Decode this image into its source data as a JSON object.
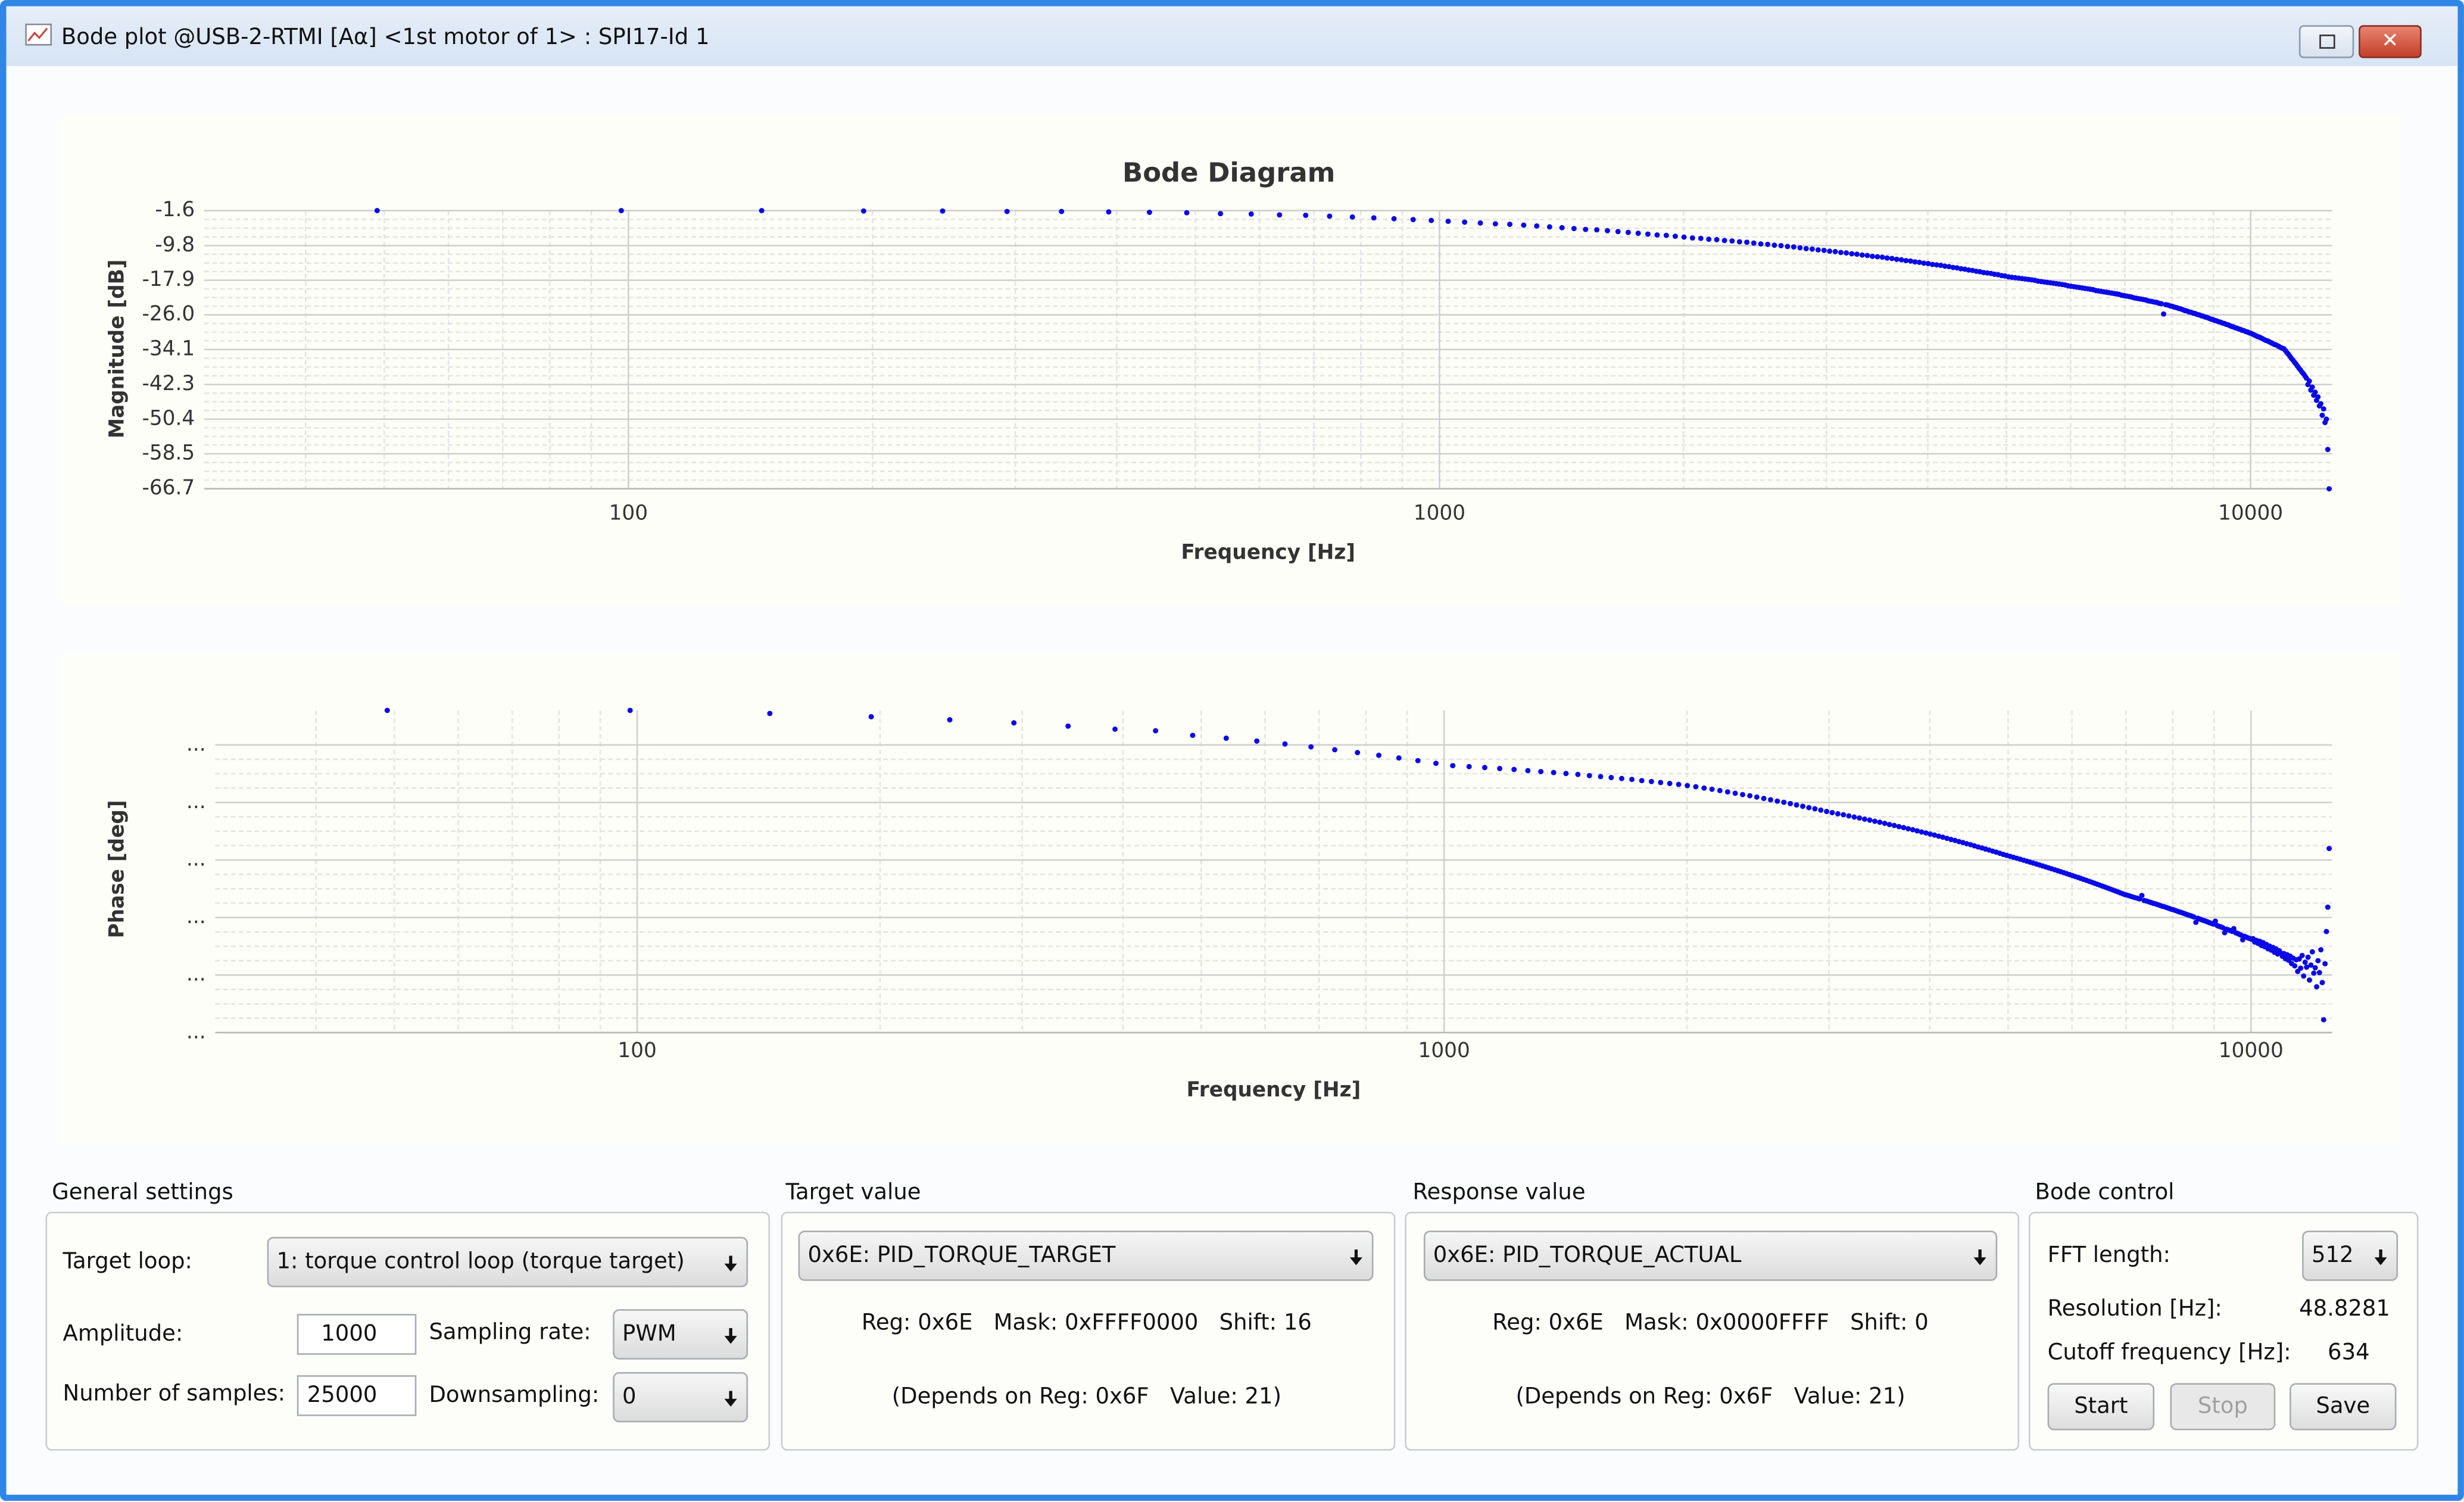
{
  "window": {
    "title": "Bode plot @USB-2-RTMI [Aα] <1st motor of 1> : SPI17-Id 1"
  },
  "chart_data": [
    {
      "type": "scatter",
      "title": "Bode Diagram",
      "x_label": "Frequency [Hz]",
      "y_label": "Magnitude [dB]",
      "color": "#0a0ae6",
      "log_x": true,
      "grid": true,
      "xlim": [
        30,
        12600
      ],
      "xticks": [
        100,
        1000,
        10000
      ],
      "ylim": [
        -66.7,
        -1.6
      ],
      "yticks": [
        -1.6,
        -9.8,
        -17.9,
        {
          "value": -26,
          "label": "-26.0"
        },
        -34.1,
        -42.3,
        -50.4,
        -58.5,
        -66.7
      ],
      "x": [
        49,
        98,
        146,
        195,
        244,
        293,
        342,
        391,
        439,
        488,
        537,
        586,
        635,
        684,
        732,
        781,
        830,
        879,
        928,
        977,
        1025,
        1074,
        1123,
        1172,
        1221,
        1270,
        1318,
        1367,
        1416,
        1465,
        1514,
        1563,
        1611,
        1660,
        1709,
        1758,
        1807,
        1855,
        1904,
        1953,
        2002,
        2051,
        2100,
        2148,
        2197,
        2246,
        2295,
        2344,
        2393,
        2441,
        2490,
        2539,
        2588,
        2637,
        2686,
        2734,
        2783,
        2832,
        2881,
        2930,
        2979,
        3027,
        3076,
        3125,
        3174,
        3223,
        3271,
        3320,
        3369,
        3418,
        3467,
        3516,
        3564,
        3613,
        3662,
        3711,
        3760,
        3809,
        3857,
        3906,
        3955,
        4004,
        4053,
        4102,
        4150,
        4199,
        4248,
        4297,
        4346,
        4395,
        4443,
        4492,
        4541,
        4590,
        4639,
        4688,
        4736,
        4785,
        4834,
        4883,
        4932,
        4980,
        5029,
        5078,
        5127,
        5176,
        5225,
        5273,
        5322,
        5371,
        5420,
        5469,
        5518,
        5566,
        5615,
        5664,
        5713,
        5762,
        5811,
        5859,
        5908,
        5957,
        6006,
        6055,
        6104,
        6152,
        6201,
        6250,
        6299,
        6348,
        6396,
        6445,
        6494,
        6543,
        6592,
        6641,
        6689,
        6738,
        6787,
        6836,
        6885,
        6934,
        6982,
        7031,
        7080,
        7129,
        7178,
        7227,
        7275,
        7324,
        7373,
        7422,
        7471,
        7520,
        7568,
        7617,
        7666,
        7715,
        7764,
        7813,
        7861,
        7910,
        7959,
        8008,
        8057,
        8105,
        8154,
        8203,
        8252,
        8301,
        8350,
        8398,
        8447,
        8496,
        8545,
        8594,
        8643,
        8691,
        8740,
        8789,
        8838,
        8887,
        8936,
        8984,
        9033,
        9082,
        9131,
        9180,
        9229,
        9277,
        9326,
        9375,
        9424,
        9473,
        9521,
        9570,
        9619,
        9668,
        9717,
        9766,
        9814,
        9863,
        9912,
        9961,
        10010,
        10059,
        10107,
        10156,
        10205,
        10254,
        10303,
        10352,
        10400,
        10449,
        10498,
        10547,
        10596,
        10645,
        10693,
        10742,
        10791,
        10840,
        10889,
        10938,
        10986,
        11035,
        11084,
        11133,
        11182,
        11230,
        11279,
        11328,
        11377,
        11426,
        11475,
        11523,
        11572,
        11621,
        11670,
        11719,
        11768,
        11816,
        11865,
        11914,
        11963,
        12012,
        12061,
        12109,
        12158,
        12207,
        12256,
        12305,
        12354,
        12402,
        12451,
        12500
      ],
      "values": [
        -1.6,
        -1.6,
        -1.6,
        -1.7,
        -1.7,
        -1.8,
        -1.8,
        -1.9,
        -2.0,
        -2.1,
        -2.3,
        -2.4,
        -2.6,
        -2.7,
        -2.9,
        -3.1,
        -3.3,
        -3.5,
        -3.7,
        -3.9,
        -4.1,
        -4.3,
        -4.5,
        -4.7,
        -4.8,
        -5.0,
        -5.2,
        -5.4,
        -5.6,
        -5.8,
        -6.0,
        -6.1,
        -6.3,
        -6.5,
        -6.7,
        -6.9,
        -7.1,
        -7.3,
        -7.4,
        -7.6,
        -7.8,
        -8.0,
        -8.1,
        -8.3,
        -8.4,
        -8.6,
        -8.7,
        -8.9,
        -9.0,
        -9.2,
        -9.4,
        -9.5,
        -9.7,
        -9.8,
        -10.0,
        -10.1,
        -10.3,
        -10.5,
        -10.6,
        -10.8,
        -10.9,
        -11.1,
        -11.2,
        -11.4,
        -11.5,
        -11.7,
        -11.8,
        -12.0,
        -12.1,
        -12.3,
        -12.4,
        -12.5,
        -12.7,
        -12.8,
        -13.0,
        -13.1,
        -13.3,
        -13.4,
        -13.6,
        -13.7,
        -13.9,
        -14.0,
        -14.2,
        -14.3,
        -14.4,
        -14.6,
        -14.7,
        -14.9,
        -15.0,
        -15.2,
        -15.3,
        -15.5,
        -15.6,
        -15.8,
        -15.9,
        -16.1,
        -16.2,
        -16.3,
        -16.5,
        -16.6,
        -16.8,
        -16.9,
        -17.1,
        -17.2,
        -17.3,
        -17.4,
        -17.5,
        -17.6,
        -17.7,
        -17.8,
        -17.9,
        -18.1,
        -18.2,
        -18.3,
        -18.4,
        -18.5,
        -18.6,
        -18.7,
        -18.8,
        -18.9,
        -19.0,
        -19.2,
        -19.3,
        -19.4,
        -19.5,
        -19.6,
        -19.7,
        -19.8,
        -19.9,
        -20.0,
        -20.1,
        -20.3,
        -20.4,
        -20.5,
        -20.6,
        -20.7,
        -20.8,
        -20.9,
        -21.0,
        -21.1,
        -21.2,
        -21.4,
        -21.5,
        -21.6,
        -21.7,
        -21.8,
        -22.0,
        -22.1,
        -22.2,
        -22.3,
        -22.4,
        -22.5,
        -22.7,
        -22.8,
        -22.9,
        -23.0,
        -23.1,
        -23.3,
        -23.4,
        -25.8,
        -23.6,
        -23.7,
        -23.9,
        -24.0,
        -24.2,
        -24.3,
        -24.5,
        -24.6,
        -24.8,
        -25.0,
        -25.1,
        -25.3,
        -25.4,
        -25.6,
        -25.7,
        -25.9,
        -26.0,
        -26.2,
        -26.3,
        -26.5,
        -26.6,
        -26.8,
        -27.0,
        -27.1,
        -27.3,
        -27.4,
        -27.6,
        -27.7,
        -27.9,
        -28.0,
        -28.2,
        -28.3,
        -28.5,
        -28.7,
        -28.8,
        -29.0,
        -29.1,
        -29.3,
        -29.4,
        -29.6,
        -29.7,
        -29.9,
        -30.0,
        -30.2,
        -30.3,
        -30.5,
        -30.7,
        -30.9,
        -31.1,
        -31.2,
        -31.4,
        -31.6,
        -31.8,
        -32.0,
        -32.1,
        -32.3,
        -32.5,
        -32.7,
        -32.9,
        -33.0,
        -33.2,
        -33.4,
        -33.6,
        -33.8,
        -33.9,
        -34.3,
        -34.8,
        -35.2,
        -35.7,
        -36.2,
        -36.6,
        -37.1,
        -37.5,
        -38.0,
        -38.5,
        -38.9,
        -39.4,
        -39.8,
        -40.3,
        -40.8,
        -42.3,
        -41.5,
        -43.6,
        -42.9,
        -44.8,
        -44.1,
        -46.0,
        -45.2,
        -47.3,
        -46.8,
        -49.5,
        -48.0,
        -51.2,
        -50.4,
        -57.5,
        -66.7
      ]
    },
    {
      "type": "scatter",
      "x_label": "Frequency [Hz]",
      "y_label": "Phase [deg]",
      "color": "#0a0ae6",
      "log_x": true,
      "grid": true,
      "xlim": [
        30,
        12600
      ],
      "xticks": [
        100,
        1000,
        10000
      ],
      "ylim": [
        -170,
        -2
      ],
      "yticks": [
        {
          "value": -20,
          "label": "..."
        },
        {
          "value": -50,
          "label": "..."
        },
        {
          "value": -80,
          "label": "..."
        },
        {
          "value": -110,
          "label": "..."
        },
        {
          "value": -140,
          "label": "..."
        },
        {
          "value": -170,
          "label": "..."
        }
      ],
      "x": [
        49,
        98,
        146,
        195,
        244,
        293,
        342,
        391,
        439,
        488,
        537,
        586,
        635,
        684,
        732,
        781,
        830,
        879,
        928,
        977,
        1025,
        1074,
        1123,
        1172,
        1221,
        1270,
        1318,
        1367,
        1416,
        1465,
        1514,
        1563,
        1611,
        1660,
        1709,
        1758,
        1807,
        1855,
        1904,
        1953,
        2002,
        2051,
        2100,
        2148,
        2197,
        2246,
        2295,
        2344,
        2393,
        2441,
        2490,
        2539,
        2588,
        2637,
        2686,
        2734,
        2783,
        2832,
        2881,
        2930,
        2979,
        3027,
        3076,
        3125,
        3174,
        3223,
        3271,
        3320,
        3369,
        3418,
        3467,
        3516,
        3564,
        3613,
        3662,
        3711,
        3760,
        3809,
        3857,
        3906,
        3955,
        4004,
        4053,
        4102,
        4150,
        4199,
        4248,
        4297,
        4346,
        4395,
        4443,
        4492,
        4541,
        4590,
        4639,
        4688,
        4736,
        4785,
        4834,
        4883,
        4932,
        4980,
        5029,
        5078,
        5127,
        5176,
        5225,
        5273,
        5322,
        5371,
        5420,
        5469,
        5518,
        5566,
        5615,
        5664,
        5713,
        5762,
        5811,
        5859,
        5908,
        5957,
        6006,
        6055,
        6104,
        6152,
        6201,
        6250,
        6299,
        6348,
        6396,
        6445,
        6494,
        6543,
        6592,
        6641,
        6689,
        6738,
        6787,
        6836,
        6885,
        6934,
        6982,
        7031,
        7080,
        7129,
        7178,
        7227,
        7275,
        7324,
        7373,
        7422,
        7471,
        7520,
        7568,
        7617,
        7666,
        7715,
        7764,
        7813,
        7861,
        7910,
        7959,
        8008,
        8057,
        8105,
        8154,
        8203,
        8252,
        8301,
        8350,
        8398,
        8447,
        8496,
        8545,
        8594,
        8643,
        8691,
        8740,
        8789,
        8838,
        8887,
        8936,
        8984,
        9033,
        9082,
        9131,
        9180,
        9229,
        9277,
        9326,
        9375,
        9424,
        9473,
        9521,
        9570,
        9619,
        9668,
        9717,
        9766,
        9814,
        9863,
        9912,
        9961,
        10010,
        10059,
        10107,
        10156,
        10205,
        10254,
        10303,
        10352,
        10400,
        10449,
        10498,
        10547,
        10596,
        10645,
        10693,
        10742,
        10791,
        10840,
        10889,
        10938,
        10986,
        11035,
        11084,
        11133,
        11182,
        11230,
        11279,
        11328,
        11377,
        11426,
        11475,
        11523,
        11572,
        11621,
        11670,
        11719,
        11768,
        11816,
        11865,
        11914,
        11963,
        12012,
        12061,
        12109,
        12158,
        12207,
        12256,
        12305,
        12354,
        12402,
        12451,
        12500
      ],
      "values": [
        -2,
        -2,
        -3.6,
        -5.3,
        -6.9,
        -8.5,
        -10.2,
        -11.8,
        -12.6,
        -15,
        -16.5,
        -18,
        -19.5,
        -21,
        -22.5,
        -24,
        -25.4,
        -26.8,
        -28.2,
        -29.6,
        -30.8,
        -31.3,
        -31.8,
        -32.3,
        -32.8,
        -33.4,
        -33.9,
        -34.4,
        -34.9,
        -35.4,
        -36,
        -36.5,
        -37,
        -37.5,
        -38,
        -38.6,
        -39.1,
        -39.6,
        -40.1,
        -40.6,
        -41.2,
        -41.8,
        -42.5,
        -43.1,
        -43.8,
        -44.5,
        -45.2,
        -45.9,
        -46.5,
        -47.2,
        -47.9,
        -48.6,
        -49.3,
        -49.9,
        -50.6,
        -51.3,
        -52,
        -52.7,
        -53.3,
        -54,
        -54.7,
        -55.3,
        -55.9,
        -56.4,
        -57,
        -57.6,
        -58.1,
        -58.7,
        -59.2,
        -59.8,
        -60.3,
        -60.9,
        -61.5,
        -62,
        -62.6,
        -63.1,
        -63.7,
        -64.2,
        -64.8,
        -65.4,
        -65.9,
        -66.5,
        -67,
        -67.6,
        -68.1,
        -68.7,
        -69.3,
        -69.8,
        -70.4,
        -70.9,
        -71.5,
        -72,
        -72.6,
        -73.2,
        -73.7,
        -74.3,
        -74.8,
        -75.4,
        -75.9,
        -76.5,
        -77.1,
        -77.6,
        -78.1,
        -78.6,
        -79.1,
        -79.6,
        -80.1,
        -80.6,
        -81.1,
        -81.6,
        -82.1,
        -82.6,
        -83.1,
        -83.6,
        -84.1,
        -84.6,
        -85.1,
        -85.6,
        -86.1,
        -86.6,
        -87.1,
        -87.6,
        -88.1,
        -88.6,
        -89.1,
        -89.6,
        -90.1,
        -90.6,
        -91.1,
        -91.6,
        -92.1,
        -92.6,
        -93.1,
        -93.6,
        -94.1,
        -94.6,
        -95.1,
        -95.6,
        -96.1,
        -96.6,
        -97.1,
        -97.6,
        -98.1,
        -98.4,
        -98.8,
        -99.2,
        -99.6,
        -99.9,
        -100.3,
        -98.5,
        -101.1,
        -101.4,
        -101.8,
        -102.2,
        -102.6,
        -102.9,
        -103.3,
        -103.7,
        -104.1,
        -104.4,
        -104.8,
        -105.2,
        -105.6,
        -105.9,
        -106.3,
        -106.7,
        -107.1,
        -107.4,
        -107.8,
        -108.2,
        -108.6,
        -108.9,
        -109.3,
        -109.7,
        -112.5,
        -110.4,
        -110.8,
        -111.2,
        -111.6,
        -111.9,
        -112.3,
        -112.7,
        -113.1,
        -113.4,
        -111.9,
        -114.2,
        -114.6,
        -114.9,
        -115.3,
        -117.9,
        -116.1,
        -116.4,
        -116.8,
        -117.2,
        -115.8,
        -117.9,
        -118.3,
        -118.7,
        -119.1,
        -121.6,
        -119.8,
        -120.2,
        -120.6,
        -120.9,
        -121.3,
        -121,
        -122.8,
        -121.9,
        -123.5,
        -122.4,
        -124.6,
        -123.1,
        -125.2,
        -124,
        -126.3,
        -124.9,
        -127,
        -125.6,
        -128.1,
        -126.4,
        -129,
        -127.3,
        -128.5,
        -130.2,
        -128.8,
        -131.5,
        -129.4,
        -132.3,
        -130.1,
        -134,
        -131.2,
        -135.2,
        -132,
        -138.1,
        -131.6,
        -136.4,
        -129.8,
        -140.5,
        -133.3,
        -135.9,
        -130.7,
        -142.6,
        -134.8,
        -127.9,
        -139,
        -136.2,
        -146.1,
        -132.5,
        -138.7,
        -126.8,
        -143.9,
        -163.3,
        -134.1,
        -117.3,
        -104.6,
        -74
      ]
    }
  ],
  "general_settings": {
    "title": "General settings",
    "target_loop_label": "Target loop:",
    "target_loop": "1: torque control loop (torque target)",
    "amplitude_label": "Amplitude:",
    "amplitude": 1000,
    "sampling_rate_label": "Sampling rate:",
    "sampling_rate": "PWM",
    "samples_label": "Number of samples:",
    "samples": 25000,
    "downsampling_label": "Downsampling:",
    "downsampling": 0
  },
  "target_value": {
    "title": "Target value",
    "register": "0x6E: PID_TORQUE_TARGET",
    "info": "Reg: 0x6E   Mask: 0xFFFF0000   Shift: 16",
    "depends": "(Depends on Reg: 0x6F   Value: 21)"
  },
  "response_value": {
    "title": "Response value",
    "register": "0x6E: PID_TORQUE_ACTUAL",
    "info": "Reg: 0x6E   Mask: 0x0000FFFF   Shift: 0",
    "depends": "(Depends on Reg: 0x6F   Value: 21)"
  },
  "bode_control": {
    "title": "Bode control",
    "fft_label": "FFT length:",
    "fft": 512,
    "resolution_label": "Resolution [Hz]:",
    "resolution": 48.8281,
    "cutoff_label": "Cutoff frequency [Hz]:",
    "cutoff": 634,
    "buttons": [
      "Start",
      "Stop",
      "Save"
    ]
  }
}
